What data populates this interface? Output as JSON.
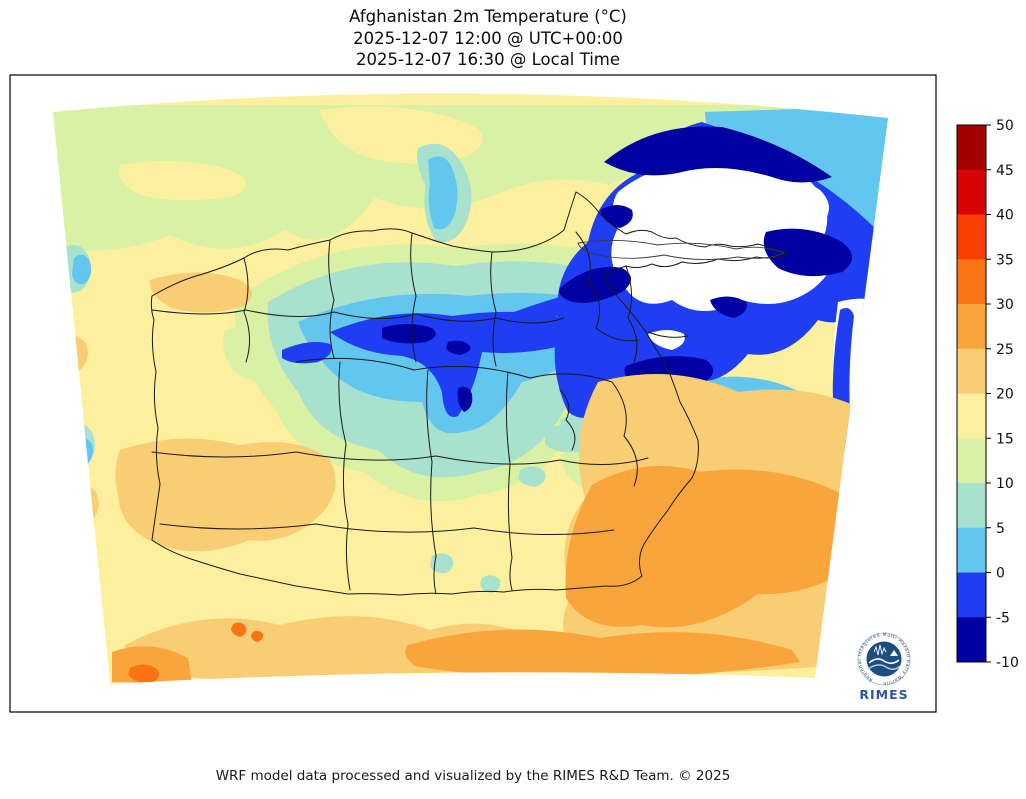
{
  "title": {
    "line1": "Afghanistan 2m Temperature (°C)",
    "line2": "2025-12-07 12:00 @ UTC+00:00",
    "line3": "2025-12-07 16:30 @ Local Time"
  },
  "footer": {
    "text": "WRF model data processed and visualized by the RIMES R&D Team. © 2025"
  },
  "logo": {
    "name": "RIMES",
    "motto": "Regional Integrated Multi-Hazard Early Warning System",
    "brand_color": "#2d55a5",
    "disc_color": "#1c4e80"
  },
  "colorbar": {
    "ticks": [
      50,
      45,
      40,
      35,
      30,
      25,
      20,
      15,
      10,
      5,
      0,
      -5,
      -10
    ],
    "segments_top_to_bottom": [
      {
        "range": "45 to 50",
        "color": "#a00000"
      },
      {
        "range": "40 to 45",
        "color": "#d60404"
      },
      {
        "range": "35 to 40",
        "color": "#f93e02"
      },
      {
        "range": "30 to 35",
        "color": "#fa7414"
      },
      {
        "range": "25 to 30",
        "color": "#faa43c"
      },
      {
        "range": "20 to 25",
        "color": "#f9cd74"
      },
      {
        "range": "15 to 20",
        "color": "#fcf09e"
      },
      {
        "range": "10 to 15",
        "color": "#d8f1a4"
      },
      {
        "range": "5 to 10",
        "color": "#a8e1cd"
      },
      {
        "range": "0 to 5",
        "color": "#63c6ef"
      },
      {
        "range": "-5 to 0",
        "color": "#1f3df2"
      },
      {
        "range": "-10 to -5",
        "color": "#0000a3"
      }
    ],
    "under_range_color": "#ffffff"
  },
  "palette": {
    "p45_50": "#a00000",
    "p40_45": "#d60404",
    "p35_40": "#f93e02",
    "p30_35": "#fa7414",
    "p25_30": "#faa43c",
    "p20_25": "#f9cd74",
    "p15_20": "#fcf09e",
    "p10_15": "#d8f1a4",
    "p5_10": "#a8e1cd",
    "p0_5": "#63c6ef",
    "pm5_0": "#1f3df2",
    "pm10_m5": "#0000a3",
    "under": "#ffffff",
    "boundary": "#1a1a1a",
    "wakhan_outline": "#3a3a3a",
    "frame": "#000000"
  },
  "chart_data": {
    "type": "heatmap",
    "title": "Afghanistan 2m Temperature (°C)",
    "valid_time_utc": "2025-12-07 12:00 @ UTC+00:00",
    "valid_time_local": "2025-12-07 16:30 @ Local Time",
    "units": "°C",
    "value_range": [
      -10,
      50
    ],
    "bin_width": 5,
    "legend_position": "right",
    "colorbar_ticks": [
      50,
      45,
      40,
      35,
      30,
      25,
      20,
      15,
      10,
      5,
      0,
      -5,
      -10
    ],
    "under_range_rendering": "white (below -10 °C, off scale)",
    "overlays": [
      "Afghanistan province boundaries",
      "country border incl. Wakhan corridor"
    ],
    "regions": [
      {
        "area": "northern top band of domain",
        "approx_temp_c": "10 to 15"
      },
      {
        "area": "northwest and west lowlands",
        "approx_temp_c": "15 to 20"
      },
      {
        "area": "far-west edge streaks and Badghis patch",
        "approx_temp_c": "20 to 25"
      },
      {
        "area": "central Hindu Kush ridge",
        "approx_temp_c": "-10 to 0"
      },
      {
        "area": "halo around central highlands",
        "approx_temp_c": "0 to 10"
      },
      {
        "area": "northeast Pamir / Wakhan high mountains",
        "approx_temp_c": "below -10 (white)"
      },
      {
        "area": "top-right corner of domain",
        "approx_temp_c": "0 to 5"
      },
      {
        "area": "southwest Helmand basin",
        "approx_temp_c": "20 to 25"
      },
      {
        "area": "southeast lowlands and bottom-right blob",
        "approx_temp_c": "25 to 30"
      },
      {
        "area": "bottom desert band",
        "approx_temp_c": "20 to 30"
      },
      {
        "area": "small hot spots along south edge",
        "approx_temp_c": "30 to 35"
      }
    ]
  }
}
